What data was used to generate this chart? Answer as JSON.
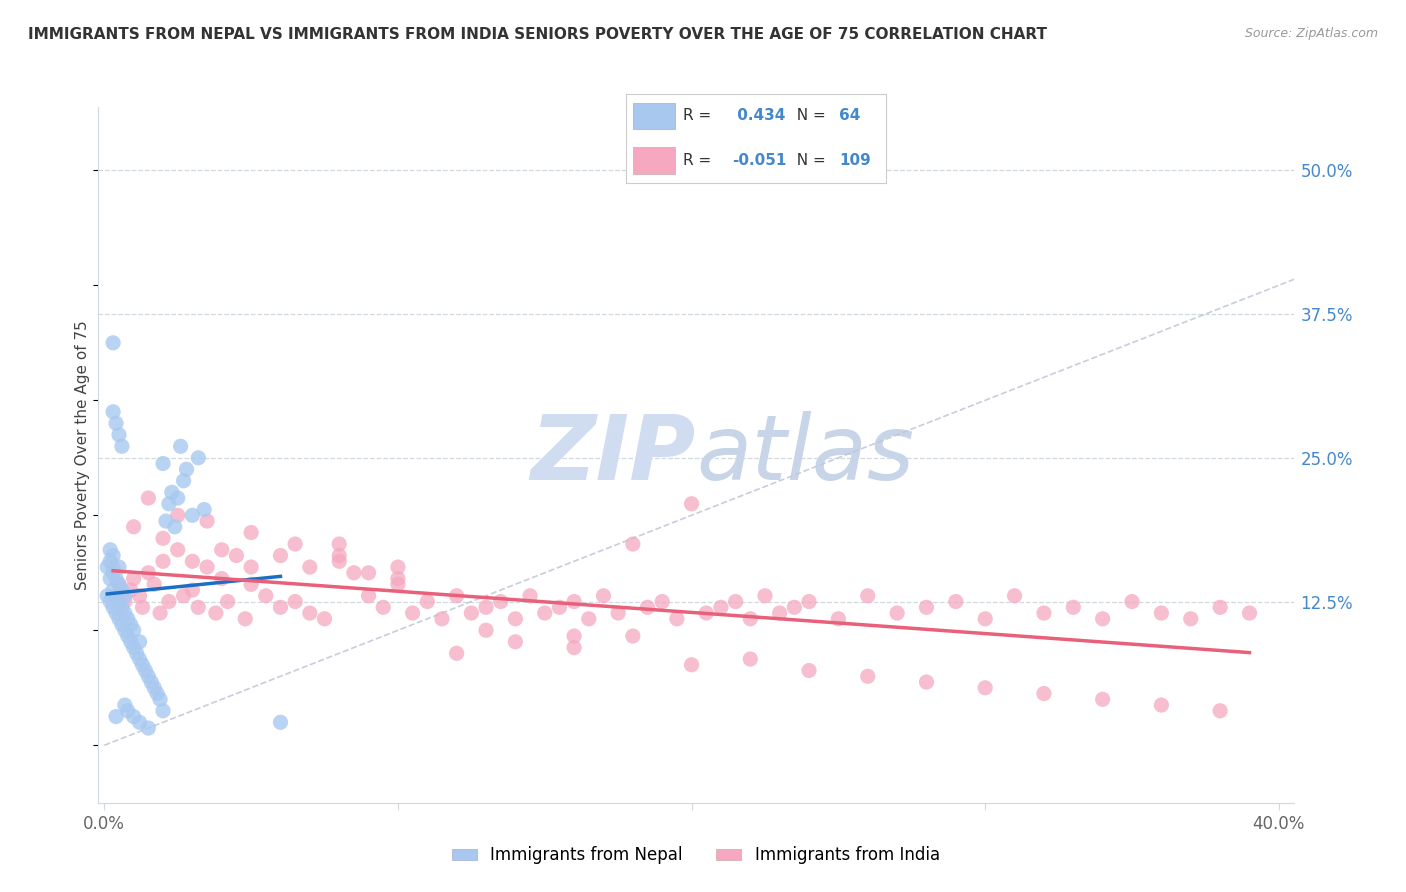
{
  "title": "IMMIGRANTS FROM NEPAL VS IMMIGRANTS FROM INDIA SENIORS POVERTY OVER THE AGE OF 75 CORRELATION CHART",
  "source": "Source: ZipAtlas.com",
  "ylabel": "Seniors Poverty Over the Age of 75",
  "ytick_labels": [
    "50.0%",
    "37.5%",
    "25.0%",
    "12.5%"
  ],
  "ytick_values": [
    0.5,
    0.375,
    0.25,
    0.125
  ],
  "xlim": [
    -0.002,
    0.405
  ],
  "ylim": [
    -0.05,
    0.555
  ],
  "nepal_R": 0.434,
  "nepal_N": 64,
  "india_R": -0.051,
  "india_N": 109,
  "nepal_color": "#a8c8f0",
  "india_color": "#f5a8c0",
  "nepal_trend_color": "#1a6fc4",
  "india_trend_color": "#e8607a",
  "diagonal_color": "#c0c8d8",
  "watermark_color": "#d0ddf0",
  "grid_color": "#d0d8e0",
  "nepal_x": [
    0.001,
    0.001,
    0.002,
    0.002,
    0.002,
    0.003,
    0.003,
    0.003,
    0.003,
    0.004,
    0.004,
    0.004,
    0.005,
    0.005,
    0.005,
    0.005,
    0.006,
    0.006,
    0.006,
    0.007,
    0.007,
    0.007,
    0.008,
    0.008,
    0.009,
    0.009,
    0.01,
    0.01,
    0.011,
    0.012,
    0.012,
    0.013,
    0.014,
    0.015,
    0.016,
    0.017,
    0.018,
    0.019,
    0.02,
    0.021,
    0.022,
    0.023,
    0.024,
    0.025,
    0.026,
    0.027,
    0.028,
    0.03,
    0.032,
    0.034,
    0.002,
    0.003,
    0.004,
    0.005,
    0.006,
    0.007,
    0.008,
    0.01,
    0.012,
    0.015,
    0.003,
    0.004,
    0.02,
    0.06
  ],
  "nepal_y": [
    0.13,
    0.155,
    0.125,
    0.145,
    0.16,
    0.12,
    0.135,
    0.15,
    0.165,
    0.115,
    0.13,
    0.145,
    0.11,
    0.125,
    0.14,
    0.155,
    0.105,
    0.12,
    0.135,
    0.1,
    0.115,
    0.13,
    0.095,
    0.11,
    0.09,
    0.105,
    0.085,
    0.1,
    0.08,
    0.075,
    0.09,
    0.07,
    0.065,
    0.06,
    0.055,
    0.05,
    0.045,
    0.04,
    0.245,
    0.195,
    0.21,
    0.22,
    0.19,
    0.215,
    0.26,
    0.23,
    0.24,
    0.2,
    0.25,
    0.205,
    0.17,
    0.29,
    0.28,
    0.27,
    0.26,
    0.035,
    0.03,
    0.025,
    0.02,
    0.015,
    0.35,
    0.025,
    0.03,
    0.02
  ],
  "india_x": [
    0.003,
    0.005,
    0.007,
    0.009,
    0.01,
    0.012,
    0.013,
    0.015,
    0.017,
    0.019,
    0.02,
    0.022,
    0.025,
    0.027,
    0.03,
    0.032,
    0.035,
    0.038,
    0.04,
    0.042,
    0.045,
    0.048,
    0.05,
    0.055,
    0.06,
    0.065,
    0.07,
    0.075,
    0.08,
    0.085,
    0.09,
    0.095,
    0.1,
    0.105,
    0.11,
    0.115,
    0.12,
    0.125,
    0.13,
    0.135,
    0.14,
    0.145,
    0.15,
    0.155,
    0.16,
    0.165,
    0.17,
    0.175,
    0.18,
    0.185,
    0.19,
    0.195,
    0.2,
    0.205,
    0.21,
    0.215,
    0.22,
    0.225,
    0.23,
    0.235,
    0.24,
    0.25,
    0.26,
    0.27,
    0.28,
    0.29,
    0.3,
    0.31,
    0.32,
    0.33,
    0.34,
    0.35,
    0.36,
    0.37,
    0.38,
    0.39,
    0.01,
    0.02,
    0.03,
    0.04,
    0.05,
    0.06,
    0.07,
    0.08,
    0.09,
    0.1,
    0.12,
    0.14,
    0.16,
    0.18,
    0.2,
    0.22,
    0.24,
    0.26,
    0.28,
    0.3,
    0.32,
    0.34,
    0.36,
    0.38,
    0.015,
    0.025,
    0.035,
    0.05,
    0.065,
    0.08,
    0.1,
    0.13,
    0.16
  ],
  "india_y": [
    0.155,
    0.14,
    0.125,
    0.135,
    0.145,
    0.13,
    0.12,
    0.15,
    0.14,
    0.115,
    0.16,
    0.125,
    0.17,
    0.13,
    0.135,
    0.12,
    0.155,
    0.115,
    0.145,
    0.125,
    0.165,
    0.11,
    0.14,
    0.13,
    0.12,
    0.125,
    0.115,
    0.11,
    0.175,
    0.15,
    0.13,
    0.12,
    0.14,
    0.115,
    0.125,
    0.11,
    0.13,
    0.115,
    0.12,
    0.125,
    0.11,
    0.13,
    0.115,
    0.12,
    0.125,
    0.11,
    0.13,
    0.115,
    0.175,
    0.12,
    0.125,
    0.11,
    0.21,
    0.115,
    0.12,
    0.125,
    0.11,
    0.13,
    0.115,
    0.12,
    0.125,
    0.11,
    0.13,
    0.115,
    0.12,
    0.125,
    0.11,
    0.13,
    0.115,
    0.12,
    0.11,
    0.125,
    0.115,
    0.11,
    0.12,
    0.115,
    0.19,
    0.18,
    0.16,
    0.17,
    0.155,
    0.165,
    0.155,
    0.16,
    0.15,
    0.145,
    0.08,
    0.09,
    0.085,
    0.095,
    0.07,
    0.075,
    0.065,
    0.06,
    0.055,
    0.05,
    0.045,
    0.04,
    0.035,
    0.03,
    0.215,
    0.2,
    0.195,
    0.185,
    0.175,
    0.165,
    0.155,
    0.1,
    0.095
  ]
}
